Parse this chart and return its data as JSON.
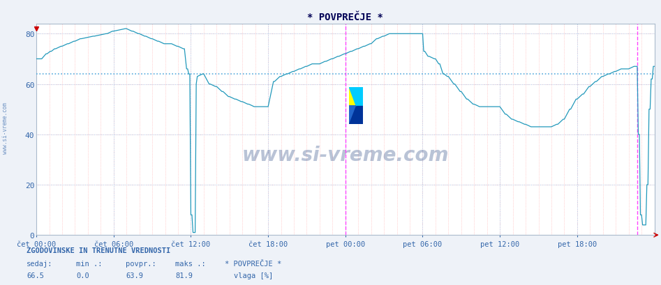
{
  "title": "* POVPREČJE *",
  "ylim": [
    0,
    84
  ],
  "yticks": [
    0,
    20,
    40,
    60,
    80
  ],
  "bg_color": "#f0f4f8",
  "plot_bg_color": "#f8faff",
  "line_color": "#2299bb",
  "avg_line_color": "#44aacc",
  "avg_value": 63.9,
  "min_value": 0.0,
  "max_value": 81.9,
  "current_value": 66.5,
  "axis_color": "#3366aa",
  "magenta_line_color": "#ff44ff",
  "text_color": "#3366aa",
  "label_bottom": "ZGODOVINSKE IN TRENUTNE VREDNOSTI",
  "label_sedaj": "sedaj:",
  "label_min": "min .:",
  "label_povpr": "povpr.:",
  "label_maks": "maks .:",
  "label_povprecje": "* POVPREČJE *",
  "label_vlaga": "vlaga [%]",
  "n_points": 577,
  "xtick_labels": [
    "čet 00:00",
    "čet 06:00",
    "čet 12:00",
    "čet 18:00",
    "pet 00:00",
    "pet 06:00",
    "pet 12:00",
    "pet 18:00"
  ],
  "xtick_positions": [
    0,
    72,
    144,
    216,
    288,
    360,
    432,
    504
  ]
}
